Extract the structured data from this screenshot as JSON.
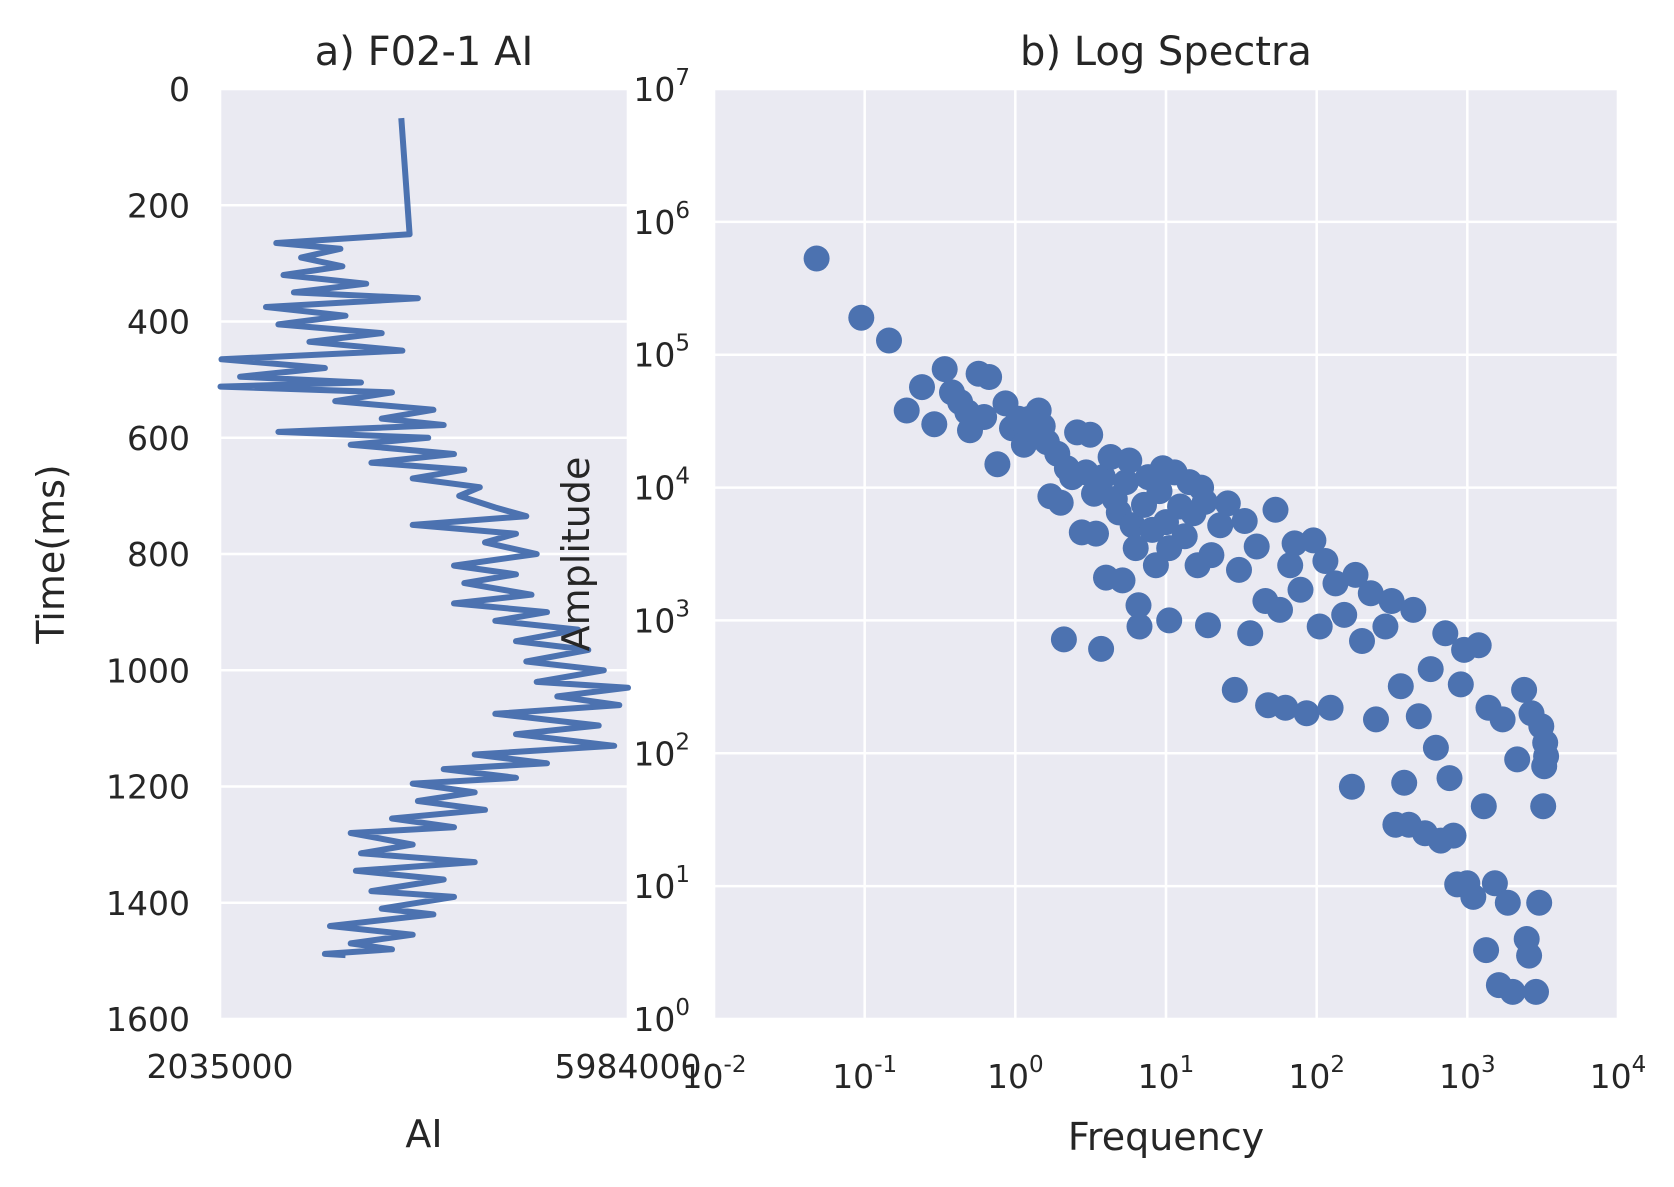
{
  "colors": {
    "plot_bg": "#eaeaf2",
    "grid": "#ffffff",
    "series": "#4c72b0",
    "text": "#262626"
  },
  "chart_data": [
    {
      "type": "line",
      "title": "a) F02-1 AI",
      "xlabel": "AI",
      "ylabel": "Time(ms)",
      "xlim": [
        2035000,
        5984000
      ],
      "ylim": [
        1600,
        0
      ],
      "y_inverted": true,
      "grid": true,
      "xticks": [
        "2035000",
        "5984000"
      ],
      "yticks": [
        "0",
        "200",
        "400",
        "600",
        "800",
        "1000",
        "1200",
        "1400",
        "1600"
      ],
      "series": [
        {
          "points": [
            [
              3790000,
              50
            ],
            [
              3870000,
              250
            ],
            [
              2580000,
              265
            ],
            [
              3200000,
              275
            ],
            [
              2820000,
              290
            ],
            [
              3220000,
              305
            ],
            [
              2650000,
              320
            ],
            [
              3450000,
              335
            ],
            [
              2750000,
              350
            ],
            [
              3950000,
              360
            ],
            [
              2480000,
              375
            ],
            [
              3250000,
              390
            ],
            [
              2600000,
              405
            ],
            [
              3600000,
              420
            ],
            [
              2900000,
              435
            ],
            [
              3800000,
              450
            ],
            [
              2050000,
              465
            ],
            [
              3050000,
              480
            ],
            [
              2230000,
              495
            ],
            [
              3400000,
              505
            ],
            [
              2040000,
              512
            ],
            [
              3700000,
              522
            ],
            [
              3150000,
              537
            ],
            [
              4100000,
              552
            ],
            [
              3600000,
              567
            ],
            [
              4200000,
              578
            ],
            [
              2600000,
              590
            ],
            [
              4050000,
              600
            ],
            [
              3300000,
              612
            ],
            [
              4300000,
              628
            ],
            [
              3500000,
              643
            ],
            [
              4400000,
              655
            ],
            [
              3900000,
              670
            ],
            [
              4550000,
              685
            ],
            [
              4350000,
              700
            ],
            [
              4700000,
              720
            ],
            [
              5000000,
              735
            ],
            [
              3900000,
              750
            ],
            [
              4900000,
              765
            ],
            [
              4600000,
              780
            ],
            [
              5100000,
              800
            ],
            [
              4300000,
              820
            ],
            [
              4900000,
              835
            ],
            [
              4400000,
              850
            ],
            [
              5050000,
              870
            ],
            [
              4300000,
              885
            ],
            [
              5200000,
              900
            ],
            [
              4700000,
              915
            ],
            [
              5500000,
              930
            ],
            [
              4900000,
              950
            ],
            [
              5600000,
              965
            ],
            [
              5000000,
              985
            ],
            [
              5750000,
              1000
            ],
            [
              5100000,
              1020
            ],
            [
              5984000,
              1030
            ],
            [
              5300000,
              1045
            ],
            [
              5900000,
              1060
            ],
            [
              4700000,
              1075
            ],
            [
              5700000,
              1095
            ],
            [
              4900000,
              1110
            ],
            [
              5850000,
              1130
            ],
            [
              4500000,
              1145
            ],
            [
              5200000,
              1160
            ],
            [
              4200000,
              1170
            ],
            [
              4900000,
              1185
            ],
            [
              3900000,
              1195
            ],
            [
              4500000,
              1210
            ],
            [
              3950000,
              1225
            ],
            [
              4600000,
              1240
            ],
            [
              3700000,
              1255
            ],
            [
              4300000,
              1270
            ],
            [
              3300000,
              1280
            ],
            [
              3900000,
              1300
            ],
            [
              3400000,
              1315
            ],
            [
              4500000,
              1330
            ],
            [
              3350000,
              1345
            ],
            [
              4200000,
              1360
            ],
            [
              3500000,
              1380
            ],
            [
              4300000,
              1390
            ],
            [
              3600000,
              1410
            ],
            [
              4100000,
              1420
            ],
            [
              3100000,
              1440
            ],
            [
              3900000,
              1455
            ],
            [
              3300000,
              1470
            ],
            [
              3700000,
              1480
            ],
            [
              3050000,
              1488
            ],
            [
              3250000,
              1490
            ]
          ]
        }
      ]
    },
    {
      "type": "scatter",
      "title": "b) Log Spectra",
      "xlabel": "Frequency",
      "ylabel": "Amplitude",
      "xscale": "log",
      "yscale": "log",
      "xlim": [
        0.01,
        10000
      ],
      "ylim": [
        1,
        10000000
      ],
      "grid": true,
      "xticks": [
        {
          "base": "10",
          "exp": "-2"
        },
        {
          "base": "10",
          "exp": "-1"
        },
        {
          "base": "10",
          "exp": "0"
        },
        {
          "base": "10",
          "exp": "1"
        },
        {
          "base": "10",
          "exp": "2"
        },
        {
          "base": "10",
          "exp": "3"
        },
        {
          "base": "10",
          "exp": "4"
        }
      ],
      "yticks": [
        {
          "base": "10",
          "exp": "0"
        },
        {
          "base": "10",
          "exp": "1"
        },
        {
          "base": "10",
          "exp": "2"
        },
        {
          "base": "10",
          "exp": "3"
        },
        {
          "base": "10",
          "exp": "4"
        },
        {
          "base": "10",
          "exp": "5"
        },
        {
          "base": "10",
          "exp": "6"
        },
        {
          "base": "10",
          "exp": "7"
        }
      ],
      "points": [
        [
          0.048,
          530000
        ],
        [
          0.095,
          190000
        ],
        [
          0.145,
          128000
        ],
        [
          0.19,
          38000
        ],
        [
          0.24,
          57000
        ],
        [
          0.29,
          30000
        ],
        [
          0.34,
          78000
        ],
        [
          0.38,
          52000
        ],
        [
          0.43,
          44000
        ],
        [
          0.48,
          37000
        ],
        [
          0.5,
          27000
        ],
        [
          0.57,
          72000
        ],
        [
          0.62,
          34000
        ],
        [
          0.67,
          68000
        ],
        [
          0.76,
          15000
        ],
        [
          0.86,
          43000
        ],
        [
          0.95,
          28000
        ],
        [
          1.05,
          33000
        ],
        [
          1.14,
          21000
        ],
        [
          1.24,
          33000
        ],
        [
          1.33,
          27000
        ],
        [
          1.43,
          38000
        ],
        [
          1.52,
          29000
        ],
        [
          1.62,
          22000
        ],
        [
          1.71,
          8600
        ],
        [
          1.9,
          18000
        ],
        [
          2.0,
          7700
        ],
        [
          2.1,
          720
        ],
        [
          2.2,
          14000
        ],
        [
          2.38,
          12000
        ],
        [
          2.57,
          26000
        ],
        [
          2.76,
          4600
        ],
        [
          2.95,
          13000
        ],
        [
          3.14,
          25000
        ],
        [
          3.33,
          9000
        ],
        [
          3.43,
          4500
        ],
        [
          3.71,
          610
        ],
        [
          3.81,
          12000
        ],
        [
          4.0,
          2100
        ],
        [
          4.29,
          17000
        ],
        [
          4.57,
          8200
        ],
        [
          4.86,
          6500
        ],
        [
          5.14,
          2000
        ],
        [
          5.43,
          11000
        ],
        [
          5.71,
          16000
        ],
        [
          6.0,
          5200
        ],
        [
          6.29,
          3500
        ],
        [
          6.57,
          1300
        ],
        [
          6.67,
          900
        ],
        [
          7.14,
          7400
        ],
        [
          7.62,
          12000
        ],
        [
          8.1,
          4800
        ],
        [
          8.57,
          2600
        ],
        [
          9.05,
          9400
        ],
        [
          9.52,
          14000
        ],
        [
          10.0,
          5500
        ],
        [
          10.5,
          3500
        ],
        [
          10.5,
          1000
        ],
        [
          11.4,
          13000
        ],
        [
          12.4,
          7200
        ],
        [
          13.3,
          4300
        ],
        [
          14.3,
          11000
        ],
        [
          15.2,
          6400
        ],
        [
          16.2,
          2600
        ],
        [
          17.1,
          10000
        ],
        [
          18.1,
          7800
        ],
        [
          19.0,
          920
        ],
        [
          20.0,
          3100
        ],
        [
          22.9,
          5200
        ],
        [
          25.7,
          7600
        ],
        [
          28.6,
          300
        ],
        [
          30.5,
          2400
        ],
        [
          33.3,
          5600
        ],
        [
          36.2,
          800
        ],
        [
          40.0,
          3600
        ],
        [
          45.7,
          1400
        ],
        [
          47.6,
          230
        ],
        [
          53.3,
          6800
        ],
        [
          57.1,
          1200
        ],
        [
          62.0,
          220
        ],
        [
          66.7,
          2600
        ],
        [
          71.4,
          3800
        ],
        [
          78.1,
          1700
        ],
        [
          85.7,
          200
        ],
        [
          95.2,
          4000
        ],
        [
          104.8,
          900
        ],
        [
          114.3,
          2800
        ],
        [
          123.8,
          220
        ],
        [
          133.3,
          1900
        ],
        [
          152.4,
          1100
        ],
        [
          171.4,
          56
        ],
        [
          180.9,
          2200
        ],
        [
          200,
          700
        ],
        [
          228.6,
          1600
        ],
        [
          247.6,
          180
        ],
        [
          285.7,
          900
        ],
        [
          314.3,
          1400
        ],
        [
          333.3,
          29
        ],
        [
          361.9,
          320
        ],
        [
          380.9,
          60
        ],
        [
          409.5,
          29
        ],
        [
          438.1,
          1200
        ],
        [
          476.2,
          190
        ],
        [
          523.8,
          25
        ],
        [
          571.4,
          430
        ],
        [
          619.0,
          110
        ],
        [
          666.7,
          22
        ],
        [
          714.3,
          800
        ],
        [
          761.9,
          65
        ],
        [
          809.5,
          24
        ],
        [
          857.1,
          10.3
        ],
        [
          904.8,
          330
        ],
        [
          952.4,
          600
        ],
        [
          1000,
          10.5
        ],
        [
          1095,
          8.3
        ],
        [
          1190,
          650
        ],
        [
          1286,
          40
        ],
        [
          1333,
          3.3
        ],
        [
          1381,
          220
        ],
        [
          1524,
          10.5
        ],
        [
          1619,
          1.8
        ],
        [
          1714,
          180
        ],
        [
          1857,
          7.5
        ],
        [
          2000,
          1.6
        ],
        [
          2143,
          90
        ],
        [
          2381,
          300
        ],
        [
          2476,
          4
        ],
        [
          2571,
          3
        ],
        [
          2667,
          200
        ],
        [
          2857,
          1.6
        ],
        [
          3000,
          7.5
        ],
        [
          3096,
          160
        ],
        [
          3190,
          40
        ],
        [
          3238,
          80
        ],
        [
          3285,
          120
        ],
        [
          3333,
          95
        ]
      ]
    }
  ]
}
